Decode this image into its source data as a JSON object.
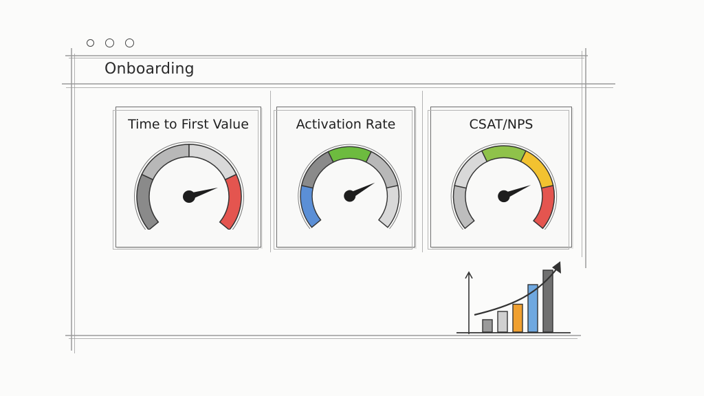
{
  "page": {
    "title": "Onboarding"
  },
  "window": {
    "controls": [
      {
        "name": "close-dot"
      },
      {
        "name": "minimize-dot"
      },
      {
        "name": "maximize-dot"
      }
    ]
  },
  "cards": [
    {
      "title": "Time to First Value",
      "gauge": {
        "segments": [
          "#8a8a8a",
          "#b8b8b8",
          "#d9d9d9",
          "#e4554f"
        ],
        "needle_fraction": 0.78
      }
    },
    {
      "title": "Activation Rate",
      "gauge": {
        "segments": [
          "#5b8fd6",
          "#8a8a8a",
          "#6dbb3f",
          "#b8b8b8",
          "#d9d9d9"
        ],
        "needle_fraction": 0.74
      }
    },
    {
      "title": "CSAT/NPS",
      "gauge": {
        "segments": [
          "#bdbdbd",
          "#d9d9d9",
          "#8fc24a",
          "#f2c230",
          "#e4554f"
        ],
        "needle_fraction": 0.76
      }
    }
  ],
  "trend_icon": {
    "bars": [
      0.12,
      0.2,
      0.27,
      0.46,
      0.6
    ],
    "colors": [
      "#9a9a9a",
      "#d0d0d0",
      "#f0a030",
      "#6fa8e0",
      "#707070"
    ]
  }
}
